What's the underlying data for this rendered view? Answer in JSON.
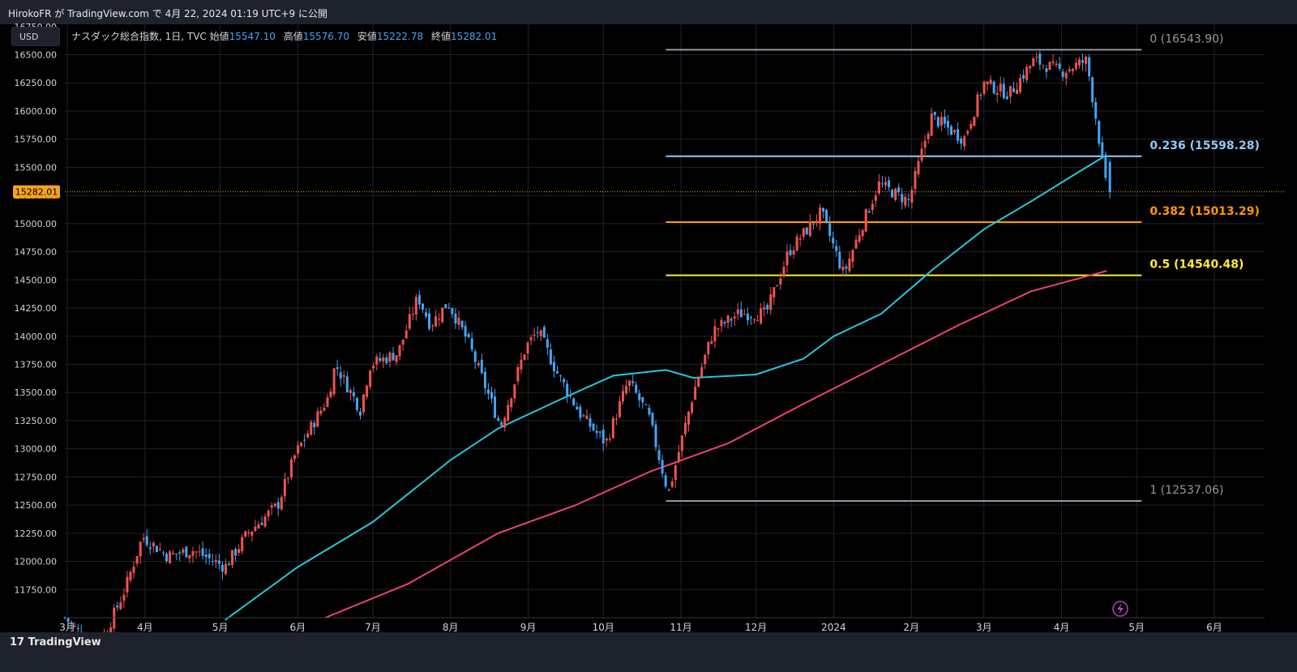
{
  "header": {
    "publish_text": "HirokoFR が TradingView.com で 4月 22, 2024 01:19 UTC+9 に公開"
  },
  "toolbar": {
    "currency": "USD"
  },
  "legend": {
    "symbol": "ナスダック総合指数, 1日, TVC",
    "open_label": "始値",
    "open": "15547.10",
    "high_label": "高値",
    "high": "15576.70",
    "low_label": "安値",
    "low": "15222.78",
    "close_label": "終値",
    "close": "15282.01"
  },
  "footer": {
    "brand": "TradingView"
  },
  "colors": {
    "up": "#ef5350",
    "down": "#42a5f5",
    "ma_short": "#26c6da",
    "ma_long": "#ec407a",
    "last_price": "#f7a21b",
    "fib_0": "#9598a1",
    "fib_0236": "#90caf9",
    "fib_0382": "#ff9800",
    "fib_05": "#ffeb3b",
    "fib_1": "#9598a1"
  },
  "chart_data": {
    "type": "candlestick",
    "y_axis_ticks": [
      "16500.00",
      "16250.00",
      "16000.00",
      "15750.00",
      "15500.00",
      "15250.00",
      "15000.00",
      "14750.00",
      "14500.00",
      "14250.00",
      "14000.00",
      "13750.00",
      "13500.00",
      "13250.00",
      "13000.00",
      "12750.00",
      "12500.00",
      "12250.00",
      "12000.00",
      "11750.00"
    ],
    "y_axis_partial_label": "16750.00",
    "ylim": [
      11500,
      16770
    ],
    "x_axis_ticks": [
      "3月",
      "4月",
      "5月",
      "6月",
      "7月",
      "8月",
      "9月",
      "10月",
      "11月",
      "12月",
      "2024",
      "2月",
      "3月",
      "4月",
      "5月",
      "6月"
    ],
    "last_price_label": "15282.01",
    "last_price": 15282.01,
    "fibonacci": [
      {
        "label": "0 (16543.90)",
        "value": 16543.9
      },
      {
        "label": "0.236 (15598.28)",
        "value": 15598.28
      },
      {
        "label": "0.382 (15013.29)",
        "value": 15013.29
      },
      {
        "label": "0.5 (14540.48)",
        "value": 14540.48
      },
      {
        "label": "1 (12537.06)",
        "value": 12537.06
      }
    ],
    "close_path": [
      [
        "2023-02-28",
        11500
      ],
      [
        "2023-03-13",
        11200
      ],
      [
        "2023-03-24",
        11750
      ],
      [
        "2023-03-31",
        12220
      ],
      [
        "2023-04-10",
        12050
      ],
      [
        "2023-04-20",
        12100
      ],
      [
        "2023-05-03",
        11950
      ],
      [
        "2023-05-12",
        12250
      ],
      [
        "2023-05-24",
        12500
      ],
      [
        "2023-05-31",
        12950
      ],
      [
        "2023-06-13",
        13450
      ],
      [
        "2023-06-16",
        13750
      ],
      [
        "2023-06-26",
        13350
      ],
      [
        "2023-06-30",
        13750
      ],
      [
        "2023-07-11",
        13850
      ],
      [
        "2023-07-19",
        14350
      ],
      [
        "2023-07-24",
        14100
      ],
      [
        "2023-07-31",
        14300
      ],
      [
        "2023-08-08",
        13950
      ],
      [
        "2023-08-21",
        13200
      ],
      [
        "2023-08-31",
        13900
      ],
      [
        "2023-09-05",
        14050
      ],
      [
        "2023-09-12",
        13700
      ],
      [
        "2023-09-22",
        13300
      ],
      [
        "2023-10-02",
        13050
      ],
      [
        "2023-10-11",
        13600
      ],
      [
        "2023-10-19",
        13300
      ],
      [
        "2023-10-27",
        12600
      ],
      [
        "2023-11-06",
        13500
      ],
      [
        "2023-11-14",
        14050
      ],
      [
        "2023-11-24",
        14200
      ],
      [
        "2023-12-05",
        14200
      ],
      [
        "2023-12-14",
        14750
      ],
      [
        "2023-12-27",
        15100
      ],
      [
        "2024-01-05",
        14550
      ],
      [
        "2024-01-12",
        14970
      ],
      [
        "2024-01-19",
        15350
      ],
      [
        "2024-01-31",
        15200
      ],
      [
        "2024-02-09",
        15950
      ],
      [
        "2024-02-22",
        15750
      ],
      [
        "2024-03-01",
        16250
      ],
      [
        "2024-03-11",
        16150
      ],
      [
        "2024-03-21",
        16450
      ],
      [
        "2024-04-01",
        16350
      ],
      [
        "2024-04-11",
        16450
      ],
      [
        "2024-04-15",
        15900
      ],
      [
        "2024-04-19",
        15282.01
      ]
    ],
    "ma_short": [
      [
        "2023-05-03",
        11480
      ],
      [
        "2023-06-01",
        11950
      ],
      [
        "2023-07-01",
        12350
      ],
      [
        "2023-08-01",
        12900
      ],
      [
        "2023-08-20",
        13180
      ],
      [
        "2023-09-15",
        13450
      ],
      [
        "2023-10-05",
        13650
      ],
      [
        "2023-10-26",
        13700
      ],
      [
        "2023-11-06",
        13630
      ],
      [
        "2023-12-01",
        13660
      ],
      [
        "2023-12-20",
        13800
      ],
      [
        "2024-01-01",
        14000
      ],
      [
        "2024-01-20",
        14200
      ],
      [
        "2024-02-10",
        14600
      ],
      [
        "2024-03-01",
        14950
      ],
      [
        "2024-03-20",
        15200
      ],
      [
        "2024-04-05",
        15420
      ],
      [
        "2024-04-19",
        15610
      ]
    ],
    "ma_long": [
      [
        "2023-06-12",
        11500
      ],
      [
        "2023-07-15",
        11800
      ],
      [
        "2023-08-20",
        12250
      ],
      [
        "2023-09-20",
        12500
      ],
      [
        "2023-10-20",
        12800
      ],
      [
        "2023-11-20",
        13050
      ],
      [
        "2023-12-20",
        13400
      ],
      [
        "2024-01-20",
        13750
      ],
      [
        "2024-02-20",
        14100
      ],
      [
        "2024-03-20",
        14400
      ],
      [
        "2024-04-19",
        14580
      ]
    ]
  }
}
